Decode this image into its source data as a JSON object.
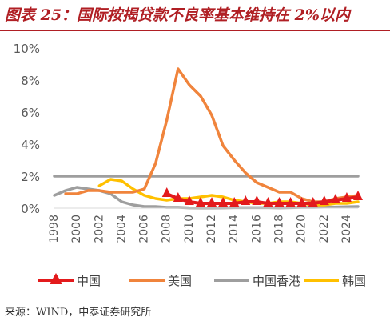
{
  "title": "图表 25：国际按揭贷款不良率基本维持在 2%以内",
  "source": "来源：WIND，中泰证券研究所",
  "colors": {
    "title": "#b01f24",
    "china": "#e31a1c",
    "usa": "#f0843c",
    "hongkong": "#9e9e9e",
    "korea": "#ffc000"
  },
  "chart_data": {
    "type": "line",
    "title": "",
    "xlabel": "",
    "ylabel": "",
    "xlim": [
      1998,
      2025
    ],
    "ylim": [
      0,
      10
    ],
    "x_tick_labels": [
      "1998",
      "2000",
      "2002",
      "2004",
      "2006",
      "2008",
      "2010",
      "2012",
      "2014",
      "2016",
      "2018",
      "2020",
      "2022",
      "2024"
    ],
    "y_tick_labels": [
      "0%",
      "2%",
      "4%",
      "6%",
      "8%",
      "10%"
    ],
    "y_tick_values": [
      0,
      2,
      4,
      6,
      8,
      10
    ],
    "grid": false,
    "legend_position": "bottom",
    "series": [
      {
        "name": "中国",
        "color": "#e31a1c",
        "marker": "triangle",
        "x": [
          2008,
          2009,
          2010,
          2011,
          2012,
          2013,
          2014,
          2015,
          2016,
          2017,
          2018,
          2019,
          2020,
          2021,
          2022,
          2023,
          2024,
          2025
        ],
        "y": [
          0.9,
          0.6,
          0.4,
          0.3,
          0.3,
          0.3,
          0.3,
          0.4,
          0.4,
          0.3,
          0.3,
          0.3,
          0.3,
          0.3,
          0.4,
          0.5,
          0.6,
          0.7
        ]
      },
      {
        "name": "美国",
        "color": "#f0843c",
        "x": [
          1999,
          2000,
          2001,
          2002,
          2003,
          2004,
          2005,
          2006,
          2007,
          2008,
          2009,
          2010,
          2011,
          2012,
          2013,
          2014,
          2015,
          2016,
          2017,
          2018,
          2019,
          2020,
          2021,
          2022,
          2023,
          2024,
          2025
        ],
        "y": [
          0.9,
          0.9,
          1.1,
          1.1,
          1.0,
          1.0,
          1.0,
          1.2,
          2.8,
          5.5,
          8.7,
          7.7,
          7.0,
          5.8,
          3.9,
          3.0,
          2.2,
          1.6,
          1.3,
          1.0,
          1.0,
          0.6,
          0.4,
          0.4,
          0.6,
          0.7,
          0.8
        ]
      },
      {
        "name": "中国香港",
        "color": "#9e9e9e",
        "x": [
          1998,
          2025
        ],
        "y": [
          2.0,
          2.0
        ]
      },
      {
        "name": "中国香港",
        "color": "#9e9e9e",
        "x": [
          1998,
          1999,
          2000,
          2001,
          2002,
          2003,
          2004,
          2005,
          2006,
          2007,
          2008,
          2009,
          2010,
          2011,
          2012,
          2013,
          2014,
          2015,
          2016,
          2017,
          2018,
          2019,
          2020,
          2021,
          2022,
          2023,
          2024,
          2025
        ],
        "y": [
          0.8,
          1.1,
          1.3,
          1.2,
          1.1,
          0.9,
          0.4,
          0.2,
          0.1,
          0.1,
          0.05,
          0.05,
          0.02,
          0.01,
          0.01,
          0.02,
          0.03,
          0.03,
          0.03,
          0.03,
          0.02,
          0.03,
          0.05,
          0.05,
          0.06,
          0.07,
          0.09,
          0.1
        ]
      },
      {
        "name": "韩国",
        "color": "#ffc000",
        "x": [
          2002,
          2003,
          2004,
          2005,
          2006,
          2007,
          2008,
          2009,
          2010,
          2011,
          2012,
          2013,
          2014,
          2015,
          2016,
          2017,
          2018,
          2019,
          2020,
          2021,
          2022,
          2023,
          2024,
          2025
        ],
        "y": [
          1.4,
          1.8,
          1.7,
          1.2,
          0.8,
          0.6,
          0.5,
          0.6,
          0.6,
          0.7,
          0.8,
          0.7,
          0.5,
          0.4,
          0.3,
          0.3,
          0.4,
          0.4,
          0.3,
          0.2,
          0.2,
          0.3,
          0.3,
          0.4
        ]
      }
    ]
  },
  "legend": [
    {
      "label": "中国",
      "color": "#e31a1c",
      "marker": "triangle"
    },
    {
      "label": "美国",
      "color": "#f0843c",
      "marker": "none"
    },
    {
      "label": "中国香港",
      "color": "#9e9e9e",
      "marker": "none"
    },
    {
      "label": "韩国",
      "color": "#ffc000",
      "marker": "none"
    }
  ]
}
